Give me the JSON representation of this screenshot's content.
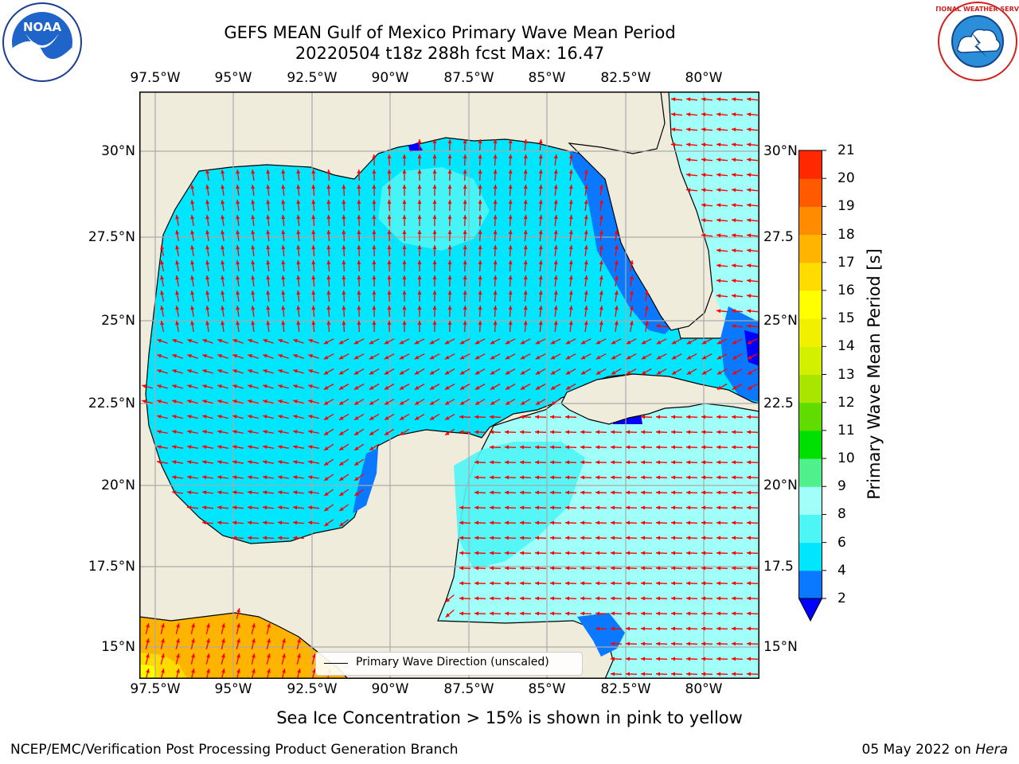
{
  "title": {
    "line1": "GEFS MEAN Gulf of Mexico Primary Wave Mean Period",
    "line2": "20220504 t18z 288h fcst   Max: 16.47"
  },
  "map": {
    "lon_labels": [
      "97.5°W",
      "95°W",
      "92.5°W",
      "90°W",
      "87.5°W",
      "85°W",
      "82.5°W",
      "80°W"
    ],
    "lat_labels_left": [
      "30°N",
      "27.5°N",
      "25°N",
      "22.5°N",
      "20°N",
      "17.5°N",
      "15°N"
    ],
    "lat_labels_right": [
      "30°N",
      "27.5",
      "25°N",
      "22.5",
      "20°N",
      "17.5",
      "15°N"
    ],
    "lon_range": [
      -98,
      -78.25
    ],
    "lat_range": [
      14,
      31.75
    ],
    "land_color": "#efecdc",
    "arrow_color": "#ff0000"
  },
  "legend": {
    "label": "Primary Wave Direction (unscaled)"
  },
  "colorbar": {
    "label": "Primary Wave Mean Period [s]",
    "ticks": [
      "2",
      "4",
      "6",
      "8",
      "9",
      "10",
      "11",
      "12",
      "13",
      "14",
      "15",
      "16",
      "17",
      "18",
      "19",
      "20",
      "21"
    ],
    "colors": [
      "#0a78ff",
      "#00e6ff",
      "#4ef5f5",
      "#a0fff8",
      "#50f08c",
      "#00e000",
      "#60dc00",
      "#a8e600",
      "#d2f000",
      "#f0f000",
      "#ffff00",
      "#ffdc00",
      "#ffb400",
      "#ff8c00",
      "#ff5a00",
      "#ff2800"
    ],
    "under_color": "#0000ff",
    "over_color": "#ff0000"
  },
  "note": "Sea Ice Concentration > 15% is shown in pink to yellow",
  "footer": {
    "left": "NCEP/EMC/Verification Post Processing Product Generation Branch",
    "right_date": "05 May 2022 on ",
    "right_host": "Hera"
  },
  "logos": {
    "noaa_text": "NOAA",
    "nws_text": "NATIONAL WEATHER SERVICE"
  }
}
